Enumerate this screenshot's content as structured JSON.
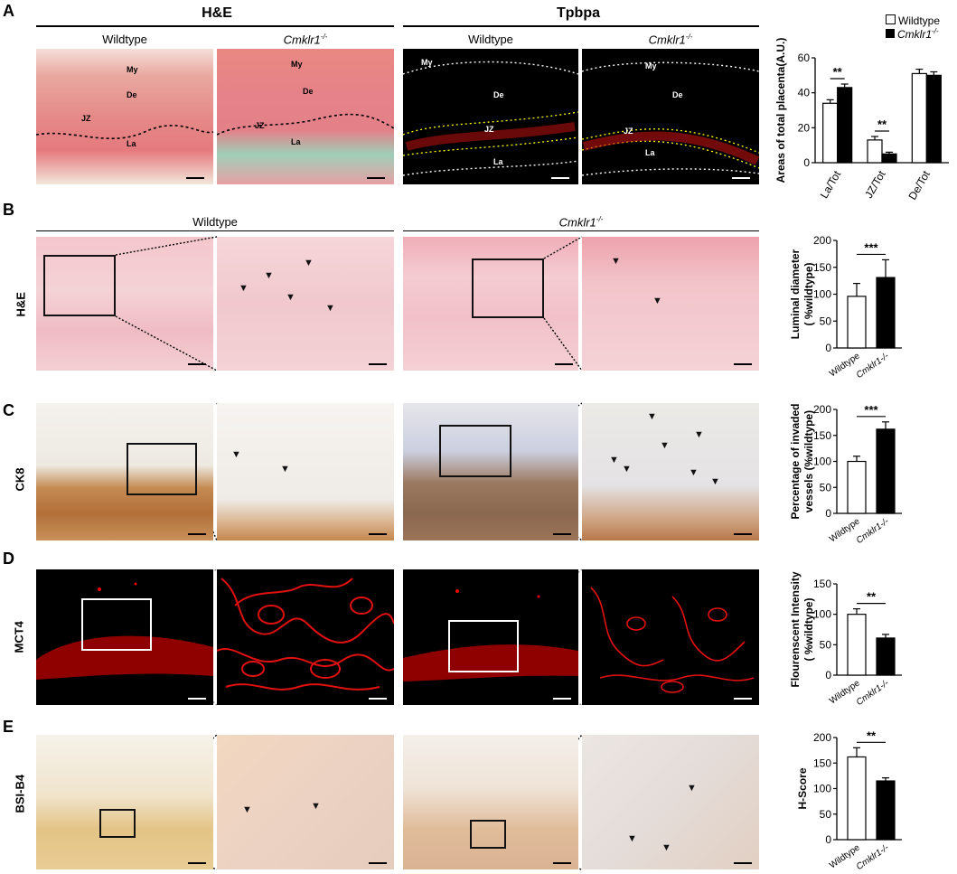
{
  "panels": {
    "A": {
      "letter": "A",
      "header_left": "H&E",
      "header_right": "Tpbpa",
      "col1": "Wildtype",
      "col2": "Cmklr1",
      "col2_sup": "-/-",
      "col3": "Wildtype",
      "col4": "Cmklr1",
      "col4_sup": "-/-",
      "tissue_labels": {
        "my": "My",
        "de": "De",
        "jz": "JZ",
        "la": "La"
      }
    },
    "B": {
      "letter": "B",
      "row_label": "H&E",
      "col_left": "Wildtype",
      "col_right": "Cmklr1",
      "col_right_sup": "-/-"
    },
    "C": {
      "letter": "C",
      "row_label": "CK8"
    },
    "D": {
      "letter": "D",
      "row_label": "MCT4"
    },
    "E": {
      "letter": "E",
      "row_label": "BSI-B4"
    }
  },
  "legend": {
    "wildtype": "Wildtype",
    "ko": "Cmklr1",
    "ko_sup": "-/-"
  },
  "colors": {
    "wildtype_fill": "#ffffff",
    "ko_fill": "#000000",
    "he_pink": "#e8a0a8",
    "ck8_brown": "#a0683a",
    "mct4_red": "#e21010"
  },
  "chart_data": [
    {
      "type": "bar",
      "id": "A",
      "ylabel": "Areas of total placenta(A.U.)",
      "categories": [
        "La/Tot",
        "JZ/Tot",
        "De/Tot"
      ],
      "series": [
        {
          "name": "Wildtype",
          "values": [
            34,
            13,
            51
          ],
          "errors": [
            2,
            2,
            2.5
          ]
        },
        {
          "name": "Cmklr1-/-",
          "values": [
            43,
            5,
            50
          ],
          "errors": [
            2,
            1,
            2
          ]
        }
      ],
      "ylim": [
        0,
        60
      ],
      "yticks": [
        "0",
        "20",
        "40",
        "60"
      ],
      "significance": [
        {
          "category": "La/Tot",
          "label": "**"
        },
        {
          "category": "JZ/Tot",
          "label": "**"
        }
      ]
    },
    {
      "type": "bar",
      "id": "B",
      "ylabel_lines": [
        "Luminal diameter",
        "( %wildtype)"
      ],
      "categories": [
        "Wildtype",
        "Cmklr1-/-"
      ],
      "values": [
        96,
        131
      ],
      "errors": [
        24,
        33
      ],
      "ylim": [
        0,
        200
      ],
      "yticks": [
        "0",
        "50",
        "100",
        "150",
        "200"
      ],
      "significance": "***"
    },
    {
      "type": "bar",
      "id": "C",
      "ylabel_lines": [
        "Percentage of invaded",
        "vessels (%wildtype)"
      ],
      "categories": [
        "Wildtype",
        "Cmklr1-/-"
      ],
      "values": [
        100,
        162
      ],
      "errors": [
        10,
        14
      ],
      "ylim": [
        0,
        200
      ],
      "yticks": [
        "0",
        "50",
        "100",
        "150",
        "200"
      ],
      "significance": "***"
    },
    {
      "type": "bar",
      "id": "D",
      "ylabel_lines": [
        "Flourenscent Intensity",
        "( %wildtype)"
      ],
      "categories": [
        "Wildtype",
        "Cmklr1-/-"
      ],
      "values": [
        100,
        61
      ],
      "errors": [
        9,
        6
      ],
      "ylim": [
        0,
        150
      ],
      "yticks": [
        "0",
        "50",
        "100",
        "150"
      ],
      "significance": "**"
    },
    {
      "type": "bar",
      "id": "E",
      "ylabel_lines": [
        "H-Score"
      ],
      "categories": [
        "Wildtype",
        "Cmklr1-/-"
      ],
      "values": [
        162,
        115
      ],
      "errors": [
        18,
        6
      ],
      "ylim": [
        0,
        200
      ],
      "yticks": [
        "0",
        "50",
        "100",
        "150",
        "200"
      ],
      "significance": "**"
    }
  ]
}
